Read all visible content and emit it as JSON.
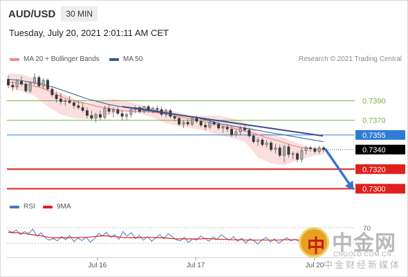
{
  "header": {
    "symbol": "AUD/USD",
    "timeframe": "30 MIN",
    "datetime": "Tuesday, July 20, 2021 2:01:11 AM CET"
  },
  "legend": {
    "ma20_label": "MA 20 + Bollinger Bands",
    "ma20_color": "#f08a8a",
    "ma50_label": "MA 50",
    "ma50_color": "#2c5d8f",
    "credit": "Research © 2021 Trading Central"
  },
  "rsi_legend": {
    "rsi_label": "RSI",
    "rsi_color": "#4a78c9",
    "ma_label": "9MA",
    "ma_color": "#e02020"
  },
  "watermark": {
    "logo_char": "中",
    "cn_text": "中金网",
    "url": "CNGOLD.COM.CN",
    "sub_text": "中金财经新媒体"
  },
  "chart_data": [
    {
      "type": "candlestick",
      "ylim": [
        0.7289,
        0.7418
      ],
      "x_tick_labels": [
        "Jul 16",
        "Jul 17",
        "Jul 20"
      ],
      "candles": [
        [
          0.7412,
          0.7416,
          0.7403,
          0.7406
        ],
        [
          0.7406,
          0.741,
          0.74,
          0.7404
        ],
        [
          0.7404,
          0.7412,
          0.7401,
          0.741
        ],
        [
          0.741,
          0.7415,
          0.7405,
          0.7407
        ],
        [
          0.7407,
          0.7409,
          0.7398,
          0.74
        ],
        [
          0.74,
          0.741,
          0.7398,
          0.7408
        ],
        [
          0.7408,
          0.7418,
          0.7406,
          0.7414
        ],
        [
          0.7414,
          0.7416,
          0.7404,
          0.7405
        ],
        [
          0.7405,
          0.7413,
          0.7402,
          0.7411
        ],
        [
          0.7411,
          0.7413,
          0.74,
          0.7402
        ],
        [
          0.7402,
          0.7405,
          0.7394,
          0.7396
        ],
        [
          0.7396,
          0.7399,
          0.7388,
          0.7392
        ],
        [
          0.7392,
          0.7398,
          0.7386,
          0.7389
        ],
        [
          0.7389,
          0.7392,
          0.7385,
          0.739
        ],
        [
          0.739,
          0.7395,
          0.7387,
          0.7388
        ],
        [
          0.7388,
          0.7391,
          0.7382,
          0.7385
        ],
        [
          0.7385,
          0.739,
          0.7381,
          0.7383
        ],
        [
          0.7383,
          0.7388,
          0.7378,
          0.738
        ],
        [
          0.738,
          0.7383,
          0.7372,
          0.7375
        ],
        [
          0.7375,
          0.738,
          0.737,
          0.7372
        ],
        [
          0.7372,
          0.7378,
          0.7368,
          0.7376
        ],
        [
          0.7376,
          0.738,
          0.737,
          0.7373
        ],
        [
          0.7373,
          0.7385,
          0.7371,
          0.7382
        ],
        [
          0.7382,
          0.7386,
          0.7376,
          0.7379
        ],
        [
          0.7379,
          0.7383,
          0.7373,
          0.7381
        ],
        [
          0.7381,
          0.7384,
          0.7375,
          0.7377
        ],
        [
          0.7377,
          0.738,
          0.737,
          0.7374
        ],
        [
          0.7374,
          0.7378,
          0.737,
          0.7376
        ],
        [
          0.7376,
          0.7383,
          0.7373,
          0.7381
        ],
        [
          0.7381,
          0.7385,
          0.7377,
          0.7383
        ],
        [
          0.7383,
          0.7385,
          0.7377,
          0.7379
        ],
        [
          0.7379,
          0.7385,
          0.7377,
          0.7384
        ],
        [
          0.7384,
          0.7386,
          0.7378,
          0.738
        ],
        [
          0.738,
          0.7384,
          0.7377,
          0.7382
        ],
        [
          0.7382,
          0.7385,
          0.7379,
          0.7381
        ],
        [
          0.7381,
          0.7384,
          0.7374,
          0.7376
        ],
        [
          0.7376,
          0.7382,
          0.7373,
          0.738
        ],
        [
          0.738,
          0.7382,
          0.7372,
          0.7374
        ],
        [
          0.7374,
          0.7377,
          0.7369,
          0.7372
        ],
        [
          0.7372,
          0.7374,
          0.7364,
          0.7366
        ],
        [
          0.7366,
          0.737,
          0.7362,
          0.7368
        ],
        [
          0.7368,
          0.7371,
          0.7364,
          0.7366
        ],
        [
          0.7366,
          0.7374,
          0.7364,
          0.7372
        ],
        [
          0.7372,
          0.7375,
          0.7367,
          0.7369
        ],
        [
          0.7369,
          0.7372,
          0.7363,
          0.7365
        ],
        [
          0.7365,
          0.7368,
          0.736,
          0.7363
        ],
        [
          0.7363,
          0.737,
          0.7361,
          0.7368
        ],
        [
          0.7368,
          0.7371,
          0.7364,
          0.7366
        ],
        [
          0.7366,
          0.7368,
          0.736,
          0.7362
        ],
        [
          0.7362,
          0.7365,
          0.7357,
          0.7363
        ],
        [
          0.7363,
          0.7366,
          0.7358,
          0.7361
        ],
        [
          0.7361,
          0.7364,
          0.7353,
          0.7355
        ],
        [
          0.7355,
          0.7361,
          0.7353,
          0.7358
        ],
        [
          0.7358,
          0.7364,
          0.7355,
          0.7362
        ],
        [
          0.7362,
          0.7365,
          0.7358,
          0.736
        ],
        [
          0.736,
          0.7362,
          0.7352,
          0.7354
        ],
        [
          0.7354,
          0.7356,
          0.7346,
          0.7348
        ],
        [
          0.7348,
          0.7353,
          0.7344,
          0.735
        ],
        [
          0.735,
          0.7352,
          0.7343,
          0.7345
        ],
        [
          0.7345,
          0.735,
          0.7342,
          0.7347
        ],
        [
          0.7347,
          0.7349,
          0.7338,
          0.734
        ],
        [
          0.734,
          0.7346,
          0.7336,
          0.7342
        ],
        [
          0.7342,
          0.7345,
          0.7332,
          0.7334
        ],
        [
          0.7334,
          0.7345,
          0.7327,
          0.7343
        ],
        [
          0.7343,
          0.7346,
          0.7332,
          0.7335
        ],
        [
          0.7335,
          0.7338,
          0.733,
          0.7336
        ],
        [
          0.7336,
          0.7338,
          0.7327,
          0.733
        ],
        [
          0.733,
          0.7342,
          0.7327,
          0.7339
        ],
        [
          0.7339,
          0.7344,
          0.7335,
          0.7342
        ],
        [
          0.7342,
          0.7344,
          0.7338,
          0.7341
        ],
        [
          0.7341,
          0.7343,
          0.7336,
          0.7338
        ],
        [
          0.7338,
          0.7344,
          0.7336,
          0.7342
        ],
        [
          0.7342,
          0.7344,
          0.7337,
          0.734
        ]
      ],
      "ma20": [
        0.7409,
        0.7408,
        0.7406,
        0.7403,
        0.7398,
        0.7393,
        0.7389,
        0.7387,
        0.7384,
        0.7382,
        0.738,
        0.7379,
        0.7379,
        0.7378,
        0.7376,
        0.7374,
        0.7372,
        0.737,
        0.7367,
        0.7364,
        0.7362,
        0.7359,
        0.7356,
        0.7352,
        0.7349,
        0.7345,
        0.7342,
        0.7341,
        0.734
      ],
      "ma50": [
        0.7412,
        0.7411,
        0.7409,
        0.7407,
        0.7404,
        0.74,
        0.7396,
        0.7392,
        0.7389,
        0.7386,
        0.7384,
        0.7383,
        0.7382,
        0.738,
        0.7378,
        0.7376,
        0.7374,
        0.7372,
        0.7369,
        0.7366,
        0.7364,
        0.7362,
        0.736,
        0.7358,
        0.7356,
        0.7354,
        0.7352,
        0.735,
        0.7348
      ],
      "bollinger_upper": [
        0.7418,
        0.7417,
        0.7413,
        0.7405,
        0.7398,
        0.7392,
        0.7388,
        0.739,
        0.7392,
        0.739,
        0.7386,
        0.7383,
        0.7381,
        0.7378,
        0.7374,
        0.7375,
        0.7375,
        0.7372,
        0.7368,
        0.7358,
        0.7356,
        0.7352,
        0.7347,
        0.7342,
        0.734
      ],
      "bollinger_lower": [
        0.7403,
        0.74,
        0.7395,
        0.7384,
        0.7376,
        0.7372,
        0.7371,
        0.7373,
        0.7377,
        0.7379,
        0.7377,
        0.7373,
        0.7367,
        0.7364,
        0.7362,
        0.7359,
        0.7355,
        0.7352,
        0.7348,
        0.7332,
        0.7326,
        0.7324,
        0.7329,
        0.7333,
        0.7335
      ],
      "trendline": [
        0.7384,
        0.7354
      ],
      "forecast_arrow": [
        0.7341,
        0.7302
      ],
      "levels": [
        {
          "value": 0.739,
          "label": "0.7390",
          "color": "#7ab04a",
          "kind": "resistance"
        },
        {
          "value": 0.737,
          "label": "0.7370",
          "color": "#7ab04a",
          "kind": "resistance"
        },
        {
          "value": 0.7355,
          "label": "0.7355",
          "color": "#2f7bd6",
          "kind": "pivot"
        },
        {
          "value": 0.734,
          "label": "0.7340",
          "color": "#000000",
          "kind": "last"
        },
        {
          "value": 0.732,
          "label": "0.7320",
          "color": "#e0201c",
          "kind": "support"
        },
        {
          "value": 0.73,
          "label": "0.7300",
          "color": "#e0201c",
          "kind": "support"
        }
      ]
    },
    {
      "type": "line",
      "ylim": [
        0,
        100
      ],
      "y_tick_labels": [
        "70"
      ],
      "series": [
        {
          "name": "RSI",
          "values": [
            62,
            58,
            64,
            52,
            60,
            55,
            66,
            48,
            57,
            44,
            38,
            42,
            36,
            47,
            39,
            50,
            34,
            43,
            37,
            46,
            33,
            41,
            55,
            49,
            58,
            45,
            52,
            40,
            60,
            48,
            57,
            42,
            50,
            38,
            47,
            35,
            44,
            52,
            41,
            55,
            47,
            39,
            36,
            45,
            32,
            41,
            38,
            49,
            42,
            35,
            46,
            40,
            52,
            44,
            38,
            47,
            35,
            43,
            30,
            42,
            36,
            28,
            39,
            45,
            33,
            41,
            30,
            37,
            44,
            36,
            40,
            35,
            42,
            38,
            45,
            33,
            40,
            37
          ]
        },
        {
          "name": "9MA",
          "values": [
            58,
            57,
            57,
            56,
            55,
            53,
            52,
            50,
            49,
            47,
            45,
            44,
            44,
            44,
            44,
            44,
            44,
            45,
            45,
            45,
            46,
            47,
            48,
            49,
            49,
            48,
            47,
            46,
            45,
            44,
            44,
            44,
            44,
            45,
            45,
            45,
            44,
            44,
            44,
            43,
            42,
            41,
            41,
            41,
            41,
            41,
            41,
            41,
            42,
            42,
            41,
            40,
            40,
            40,
            39,
            39,
            39,
            39,
            38,
            38,
            38,
            38,
            38,
            38,
            38,
            38,
            38,
            39,
            39,
            39,
            39,
            39,
            39,
            39,
            39,
            39,
            39,
            39
          ]
        }
      ]
    }
  ]
}
